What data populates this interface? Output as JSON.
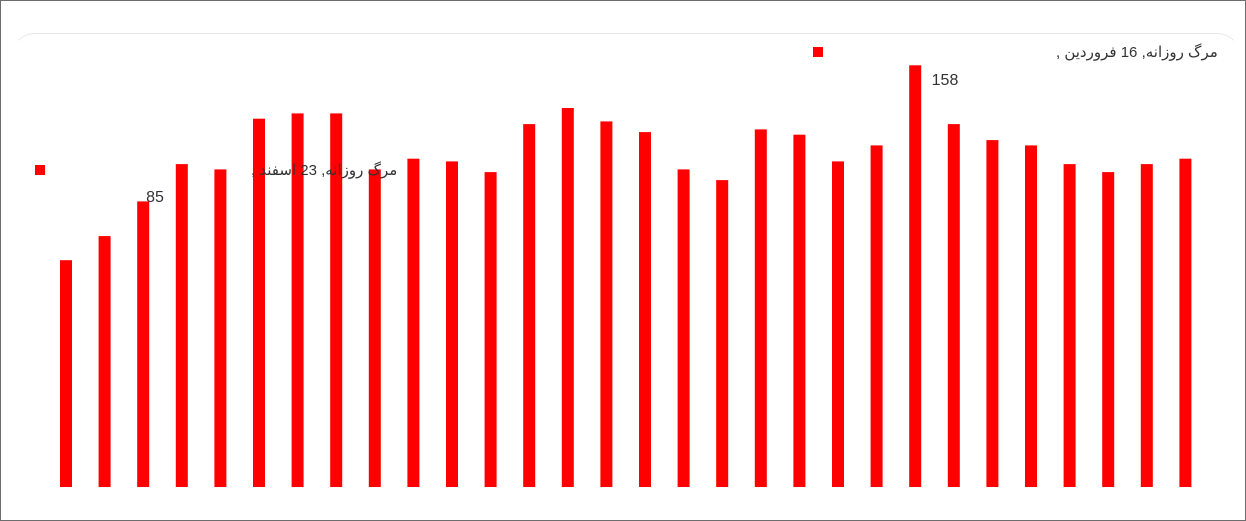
{
  "chart_data": {
    "type": "bar",
    "series": [
      {
        "color": "#ff0000",
        "values": [
          85,
          94,
          107,
          121,
          119,
          138,
          140,
          140,
          119,
          123,
          122,
          118,
          136,
          142,
          137,
          133,
          119,
          115,
          134,
          132,
          122,
          128,
          158,
          136,
          130,
          128,
          121,
          118,
          121,
          123
        ]
      }
    ],
    "ylim": [
      0,
      160
    ],
    "grid": false,
    "annotations": [
      {
        "index": 0,
        "series_label": "مرگ روزانه",
        "category": "23 اسفند",
        "separator": ",",
        "value": "85"
      },
      {
        "index": 22,
        "series_label": "مرگ روزانه",
        "category": "16 فروردین",
        "separator": ",",
        "value": "158"
      }
    ]
  }
}
